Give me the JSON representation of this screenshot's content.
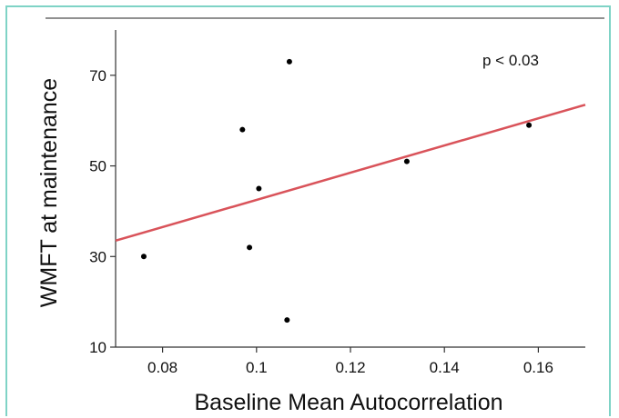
{
  "chart_data": {
    "type": "scatter",
    "xlabel": "Baseline Mean Autocorrelation",
    "ylabel": "WMFT at maintenance",
    "xlim": [
      0.07,
      0.17
    ],
    "ylim": [
      10,
      80
    ],
    "xticks": [
      0.08,
      0.1,
      0.12,
      0.14,
      0.16
    ],
    "xtick_labels": [
      "0.08",
      "0.1",
      "0.12",
      "0.14",
      "0.16"
    ],
    "yticks": [
      10,
      30,
      50,
      70
    ],
    "ytick_labels": [
      "10",
      "30",
      "50",
      "70"
    ],
    "annotation": "p < 0.03",
    "points": [
      {
        "x": 0.076,
        "y": 30
      },
      {
        "x": 0.097,
        "y": 58
      },
      {
        "x": 0.0985,
        "y": 32
      },
      {
        "x": 0.1005,
        "y": 45
      },
      {
        "x": 0.1065,
        "y": 16
      },
      {
        "x": 0.107,
        "y": 73
      },
      {
        "x": 0.132,
        "y": 51
      },
      {
        "x": 0.158,
        "y": 59
      }
    ],
    "trendline": {
      "x": [
        0.07,
        0.17
      ],
      "y": [
        33.5,
        63.5
      ],
      "color": "#d9535a"
    },
    "point_color": "#000000",
    "grid": false
  }
}
